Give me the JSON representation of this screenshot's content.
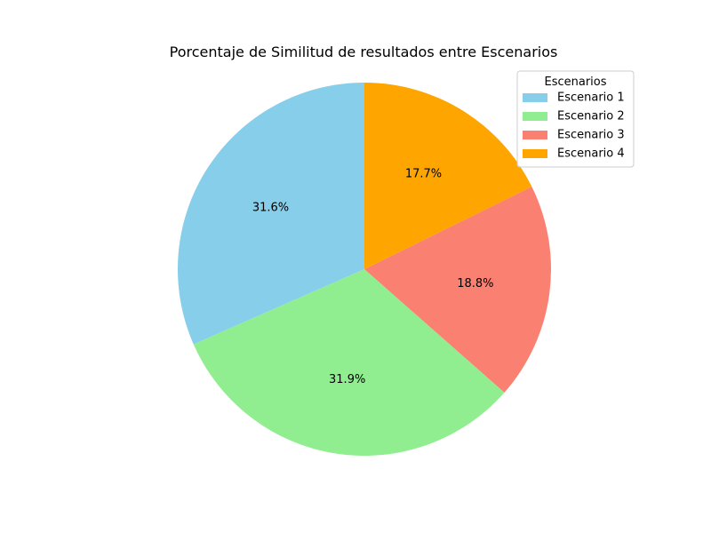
{
  "chart_data": {
    "type": "pie",
    "title": "Porcentaje de Similitud de resultados entre Escenarios",
    "categories": [
      "Escenario 1",
      "Escenario 2",
      "Escenario 3",
      "Escenario 4"
    ],
    "values": [
      31.6,
      31.9,
      18.8,
      17.7
    ],
    "value_labels": [
      "31.6%",
      "31.9%",
      "18.8%",
      "17.7%"
    ],
    "colors": [
      "#87ceeb",
      "#90ee90",
      "#fa8072",
      "#ffa500"
    ],
    "start_angle_deg": 90,
    "direction": "counterclockwise",
    "legend": {
      "title": "Escenarios",
      "placement": "upper right"
    }
  }
}
